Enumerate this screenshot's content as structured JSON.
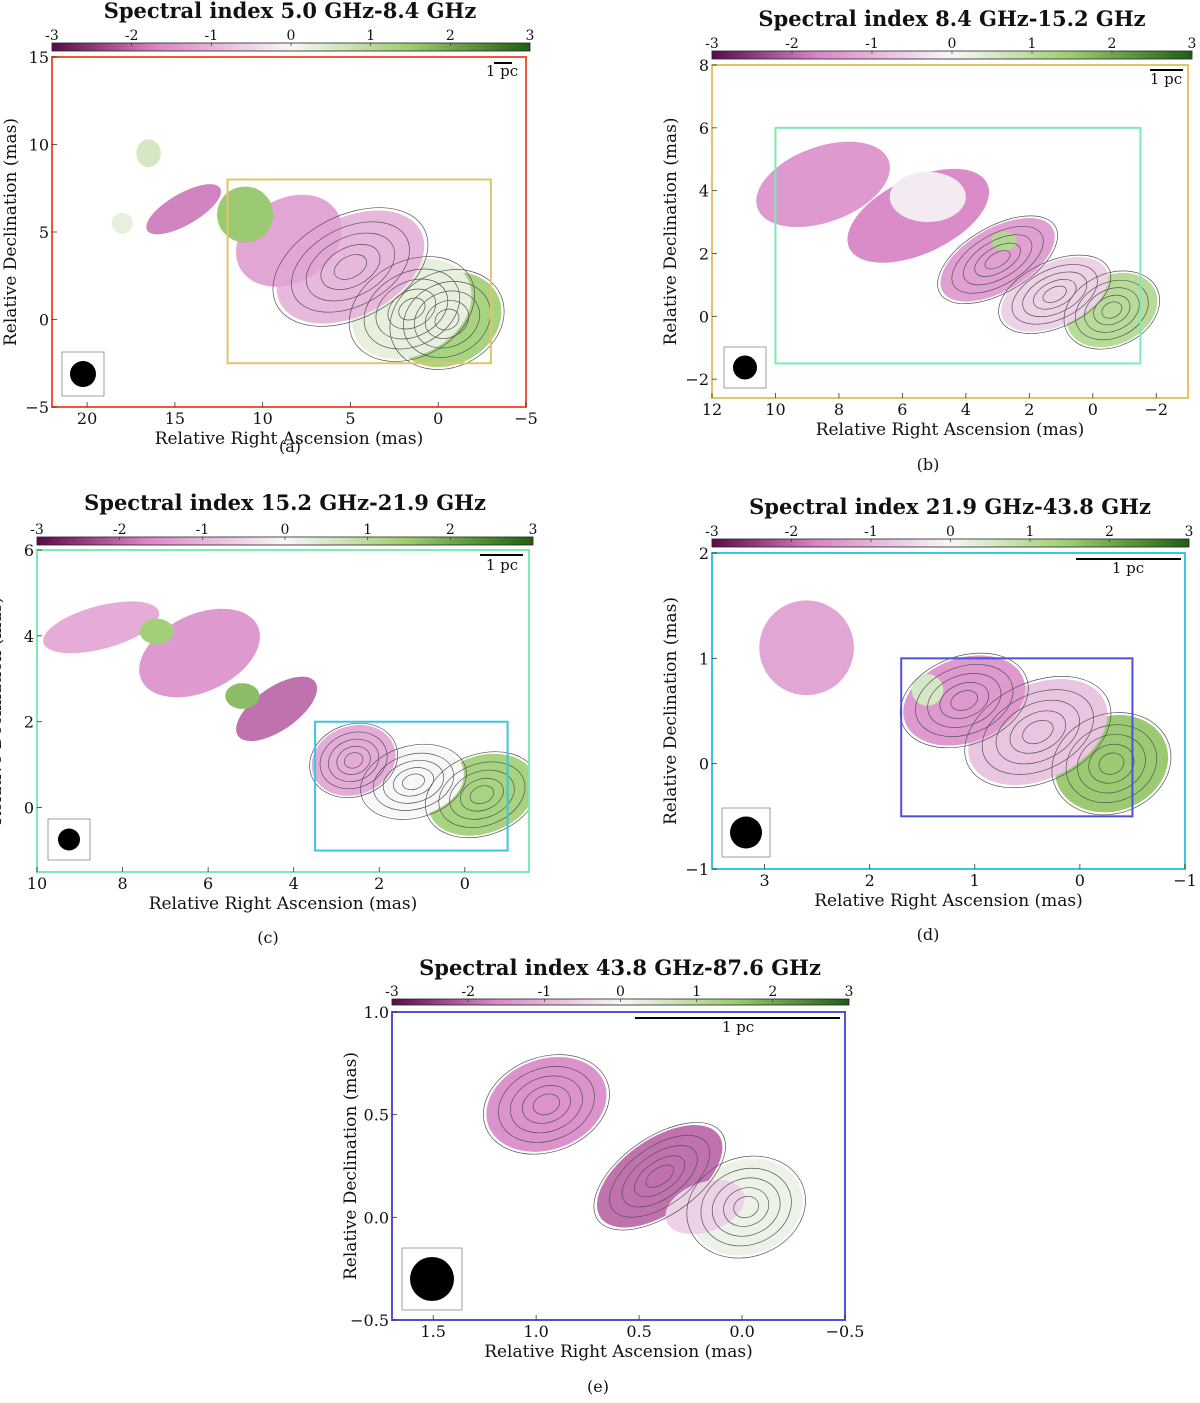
{
  "colorbar": {
    "ticks": [
      "-3",
      "-2",
      "-1",
      "0",
      "1",
      "2",
      "3"
    ],
    "colors": {
      "low": "#5a0a48",
      "mid_low": "#d985c6",
      "mid": "#f7f7f7",
      "mid_high": "#9bcd6d",
      "high": "#1f5f12"
    }
  },
  "frame_colors": {
    "a": "#f05535",
    "b": "#e3c46a",
    "c": "#7cecb2",
    "d": "#3ac6df",
    "e": "#5050df"
  },
  "chart_data": [
    {
      "id": "a",
      "type": "heatmap",
      "title": "Spectral index 5.0 GHz-8.4 GHz",
      "caption": "(a)",
      "xlabel": "Relative Right Ascension (mas)",
      "ylabel": "Relative Declination (mas)",
      "xlim": [
        22,
        -5
      ],
      "ylim": [
        -5,
        15
      ],
      "xticks": [
        20,
        15,
        10,
        5,
        0,
        -5
      ],
      "xtick_labels": [
        "20",
        "15",
        "10",
        "5",
        "0",
        "−5"
      ],
      "yticks": [
        -5,
        0,
        5,
        10,
        15
      ],
      "ytick_labels": [
        "−5",
        "0",
        "5",
        "10",
        "15"
      ],
      "scalebar_label": "1 pc",
      "colorbar_range": [
        -3,
        3
      ],
      "inset_box": {
        "x": [
          12,
          -3
        ],
        "y": [
          -2.5,
          8
        ]
      }
    },
    {
      "id": "b",
      "type": "heatmap",
      "title": "Spectral index 8.4 GHz-15.2 GHz",
      "caption": "(b)",
      "xlabel": "Relative Right Ascension (mas)",
      "ylabel": "Relative Declination (mas)",
      "xlim": [
        12,
        -3
      ],
      "ylim": [
        -2.6,
        8
      ],
      "xticks": [
        12,
        10,
        8,
        6,
        4,
        2,
        0,
        -2
      ],
      "xtick_labels": [
        "12",
        "10",
        "8",
        "6",
        "4",
        "2",
        "0",
        "−2"
      ],
      "yticks": [
        -2,
        0,
        2,
        4,
        6,
        8
      ],
      "ytick_labels": [
        "−2",
        "0",
        "2",
        "4",
        "6",
        "8"
      ],
      "scalebar_label": "1 pc",
      "colorbar_range": [
        -3,
        3
      ],
      "inset_box": {
        "x": [
          10,
          -1.5
        ],
        "y": [
          -1.5,
          6
        ]
      }
    },
    {
      "id": "c",
      "type": "heatmap",
      "title": "Spectral index 15.2 GHz-21.9 GHz",
      "caption": "(c)",
      "xlabel": "Relative Right Ascension (mas)",
      "ylabel": "Relative Declination (mas)",
      "xlim": [
        10,
        -1.5
      ],
      "ylim": [
        -1.5,
        6
      ],
      "xticks": [
        10,
        8,
        6,
        4,
        2,
        0
      ],
      "xtick_labels": [
        "10",
        "8",
        "6",
        "4",
        "2",
        "0"
      ],
      "yticks": [
        0,
        2,
        4,
        6
      ],
      "ytick_labels": [
        "0",
        "2",
        "4",
        "6"
      ],
      "scalebar_label": "1 pc",
      "colorbar_range": [
        -3,
        3
      ],
      "inset_box": {
        "x": [
          3.5,
          -1
        ],
        "y": [
          -1,
          2
        ]
      }
    },
    {
      "id": "d",
      "type": "heatmap",
      "title": "Spectral index 21.9 GHz-43.8 GHz",
      "caption": "(d)",
      "xlabel": "Relative Right Ascension (mas)",
      "ylabel": "Relative Declination (mas)",
      "xlim": [
        3.5,
        -1
      ],
      "ylim": [
        -1,
        2
      ],
      "xticks": [
        3,
        2,
        1,
        0,
        -1
      ],
      "xtick_labels": [
        "3",
        "2",
        "1",
        "0",
        "−1"
      ],
      "yticks": [
        -1,
        0,
        1,
        2
      ],
      "ytick_labels": [
        "−1",
        "0",
        "1",
        "2"
      ],
      "scalebar_label": "1 pc",
      "colorbar_range": [
        -3,
        3
      ],
      "inset_box": {
        "x": [
          1.7,
          -0.5
        ],
        "y": [
          -0.5,
          1
        ]
      }
    },
    {
      "id": "e",
      "type": "heatmap",
      "title": "Spectral index 43.8 GHz-87.6 GHz",
      "caption": "(e)",
      "xlabel": "Relative Right Ascension (mas)",
      "ylabel": "Relative Declination (mas)",
      "xlim": [
        1.7,
        -0.5
      ],
      "ylim": [
        -0.5,
        1.0
      ],
      "xticks": [
        1.5,
        1.0,
        0.5,
        0.0,
        -0.5
      ],
      "xtick_labels": [
        "1.5",
        "1.0",
        "0.5",
        "0.0",
        "−0.5"
      ],
      "yticks": [
        -0.5,
        0.0,
        0.5,
        1.0
      ],
      "ytick_labels": [
        "−0.5",
        "0.0",
        "0.5",
        "1.0"
      ],
      "scalebar_label": "1 pc",
      "colorbar_range": [
        -3,
        3
      ],
      "inset_box": null
    }
  ]
}
